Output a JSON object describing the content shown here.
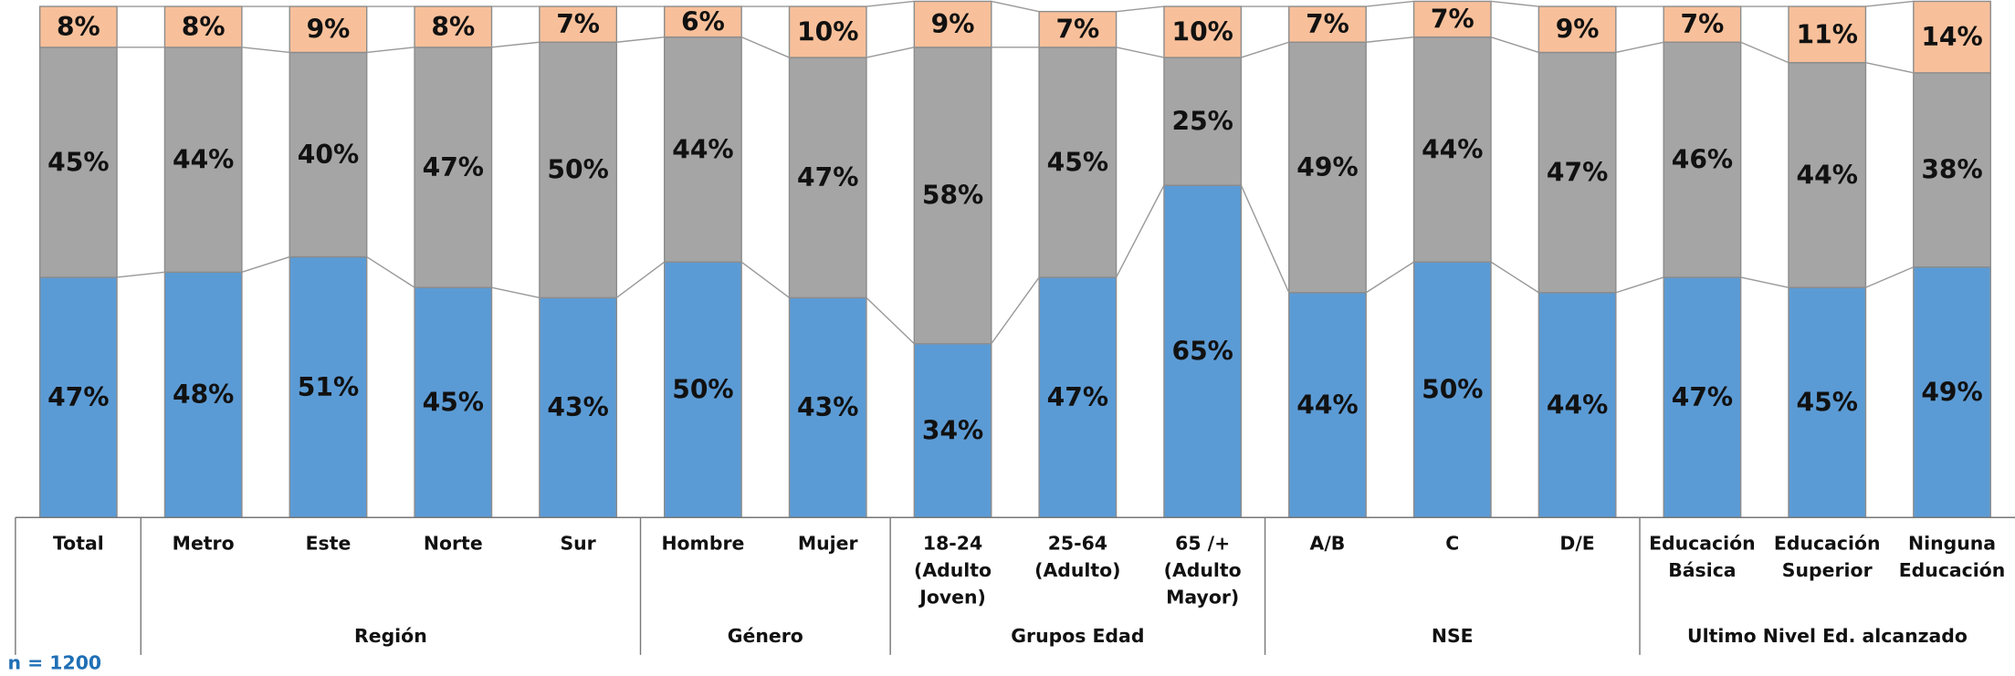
{
  "chart_data": {
    "type": "stacked_bar",
    "categories": [
      "Total",
      "Metro",
      "Este",
      "Norte",
      "Sur",
      "Hombre",
      "Mujer",
      "18-24 (Adulto Joven)",
      "25-64 (Adulto)",
      "65 /+ (Adulto Mayor)",
      "A/B",
      "C",
      "D/E",
      "Educación Básica",
      "Educación Superior",
      "Ninguna Educación"
    ],
    "groups": [
      {
        "label": "Región",
        "span": [
          1,
          4
        ]
      },
      {
        "label": "Género",
        "span": [
          5,
          6
        ]
      },
      {
        "label": "Grupos Edad",
        "span": [
          7,
          9
        ]
      },
      {
        "label": "NSE",
        "span": [
          10,
          12
        ]
      },
      {
        "label": "Ultimo Nivel Ed. alcanzado",
        "span": [
          13,
          15
        ]
      }
    ],
    "series": [
      {
        "color": "#5b9bd5",
        "values": [
          47,
          48,
          51,
          45,
          43,
          50,
          43,
          34,
          47,
          65,
          44,
          50,
          44,
          47,
          45,
          49
        ],
        "value_labels": [
          "47%",
          "48%",
          "51%",
          "45%",
          "43%",
          "50%",
          "43%",
          "34%",
          "47%",
          "65%",
          "44%",
          "50%",
          "44%",
          "47%",
          "45%",
          "49%"
        ]
      },
      {
        "color": "#a5a5a5",
        "values": [
          45,
          44,
          40,
          47,
          50,
          44,
          47,
          58,
          45,
          25,
          49,
          44,
          47,
          46,
          44,
          38
        ],
        "value_labels": [
          "45%",
          "44%",
          "40%",
          "47%",
          "50%",
          "44%",
          "47%",
          "58%",
          "45%",
          "25%",
          "49%",
          "44%",
          "47%",
          "46%",
          "44%",
          "38%"
        ]
      },
      {
        "color": "#f8c09a",
        "values": [
          8,
          8,
          9,
          8,
          7,
          6,
          10,
          9,
          7,
          10,
          7,
          7,
          9,
          7,
          11,
          14
        ],
        "value_labels": [
          "8%",
          "8%",
          "9%",
          "8%",
          "7%",
          "6%",
          "10%",
          "9%",
          "7%",
          "10%",
          "7%",
          "7%",
          "9%",
          "7%",
          "11%",
          "14%"
        ]
      }
    ],
    "ylim": [
      0,
      100
    ],
    "note": "n = 1200"
  }
}
